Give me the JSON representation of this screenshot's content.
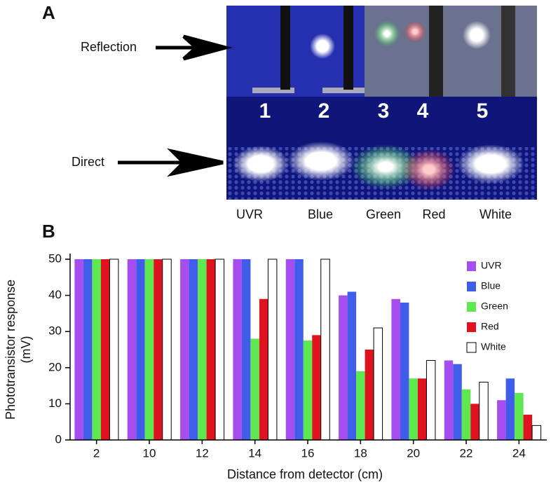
{
  "panel_a": {
    "label": "A",
    "arrows": [
      "Reflection",
      "Direct"
    ],
    "numbers": [
      "1",
      "2",
      "3",
      "4",
      "5"
    ],
    "sources": [
      "UVR",
      "Blue",
      "Green",
      "Red",
      "White"
    ]
  },
  "chart_data": {
    "type": "bar",
    "panel_label": "B",
    "xlabel": "Distance from detector (cm)",
    "ylabel": [
      "Phototransistor response",
      "(mV)"
    ],
    "categories": [
      "2",
      "10",
      "12",
      "14",
      "16",
      "18",
      "20",
      "22",
      "24"
    ],
    "series": [
      {
        "name": "UVR",
        "color": "#a64df0",
        "values": [
          50,
          50,
          50,
          50,
          50,
          40,
          39,
          22,
          11
        ]
      },
      {
        "name": "Blue",
        "color": "#3f5de8",
        "values": [
          50,
          50,
          50,
          50,
          50,
          41,
          38,
          21,
          17
        ]
      },
      {
        "name": "Green",
        "color": "#5de84f",
        "values": [
          50,
          50,
          50,
          28,
          27.5,
          19,
          17,
          14,
          13
        ]
      },
      {
        "name": "Red",
        "color": "#e0121f",
        "values": [
          50,
          50,
          50,
          39,
          29,
          25,
          17,
          10,
          7
        ]
      },
      {
        "name": "White",
        "color": "#ffffff",
        "values": [
          50,
          50,
          50,
          50,
          50,
          31,
          22,
          16,
          4
        ]
      }
    ],
    "ylim": [
      0,
      50
    ],
    "yticks": [
      0,
      10,
      20,
      30,
      40,
      50
    ],
    "legend": "upper right"
  }
}
